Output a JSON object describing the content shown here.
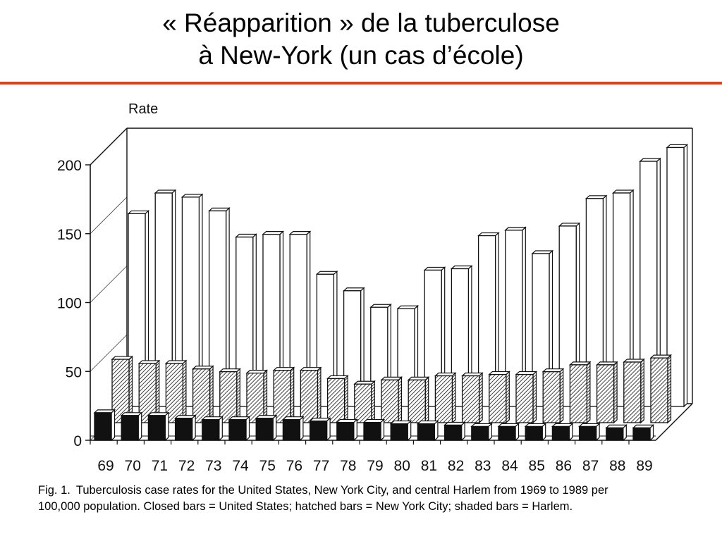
{
  "slide": {
    "title_line1": "« Réapparition » de la tuberculose",
    "title_line2": "à New-York (un cas d’école)",
    "accent_color": "#e0401c"
  },
  "caption": {
    "label": "Fig. 1.",
    "line1": "Tuberculosis case rates for the United States, New York City, and central Harlem from 1969 to 1989 per",
    "line2": "100,000 population. Closed bars = United States; hatched bars = New York City; shaded bars = Harlem."
  },
  "chart_data": {
    "type": "bar",
    "style": "3d-grouped",
    "title": "",
    "xlabel": "",
    "ylabel": "Rate",
    "ylim": [
      0,
      200
    ],
    "yticks": [
      0,
      50,
      100,
      150,
      200
    ],
    "grid": false,
    "categories": [
      "69",
      "70",
      "71",
      "72",
      "73",
      "74",
      "75",
      "76",
      "77",
      "78",
      "79",
      "80",
      "81",
      "82",
      "83",
      "84",
      "85",
      "86",
      "87",
      "88",
      "89"
    ],
    "series": [
      {
        "name": "Harlem",
        "fill": "white",
        "values": [
          140,
          155,
          152,
          142,
          123,
          125,
          125,
          96,
          84,
          72,
          71,
          99,
          100,
          124,
          128,
          111,
          131,
          151,
          155,
          178,
          188
        ]
      },
      {
        "name": "New York City",
        "fill": "hatched",
        "values": [
          46,
          43,
          43,
          39,
          37,
          36,
          38,
          38,
          32,
          28,
          31,
          31,
          34,
          34,
          35,
          35,
          37,
          42,
          42,
          44,
          47
        ]
      },
      {
        "name": "United States",
        "fill": "black",
        "values": [
          20,
          18,
          18,
          16,
          15,
          15,
          16,
          15,
          14,
          13,
          13,
          12,
          12,
          11,
          10,
          10,
          10,
          10,
          10,
          9,
          9
        ]
      }
    ]
  }
}
